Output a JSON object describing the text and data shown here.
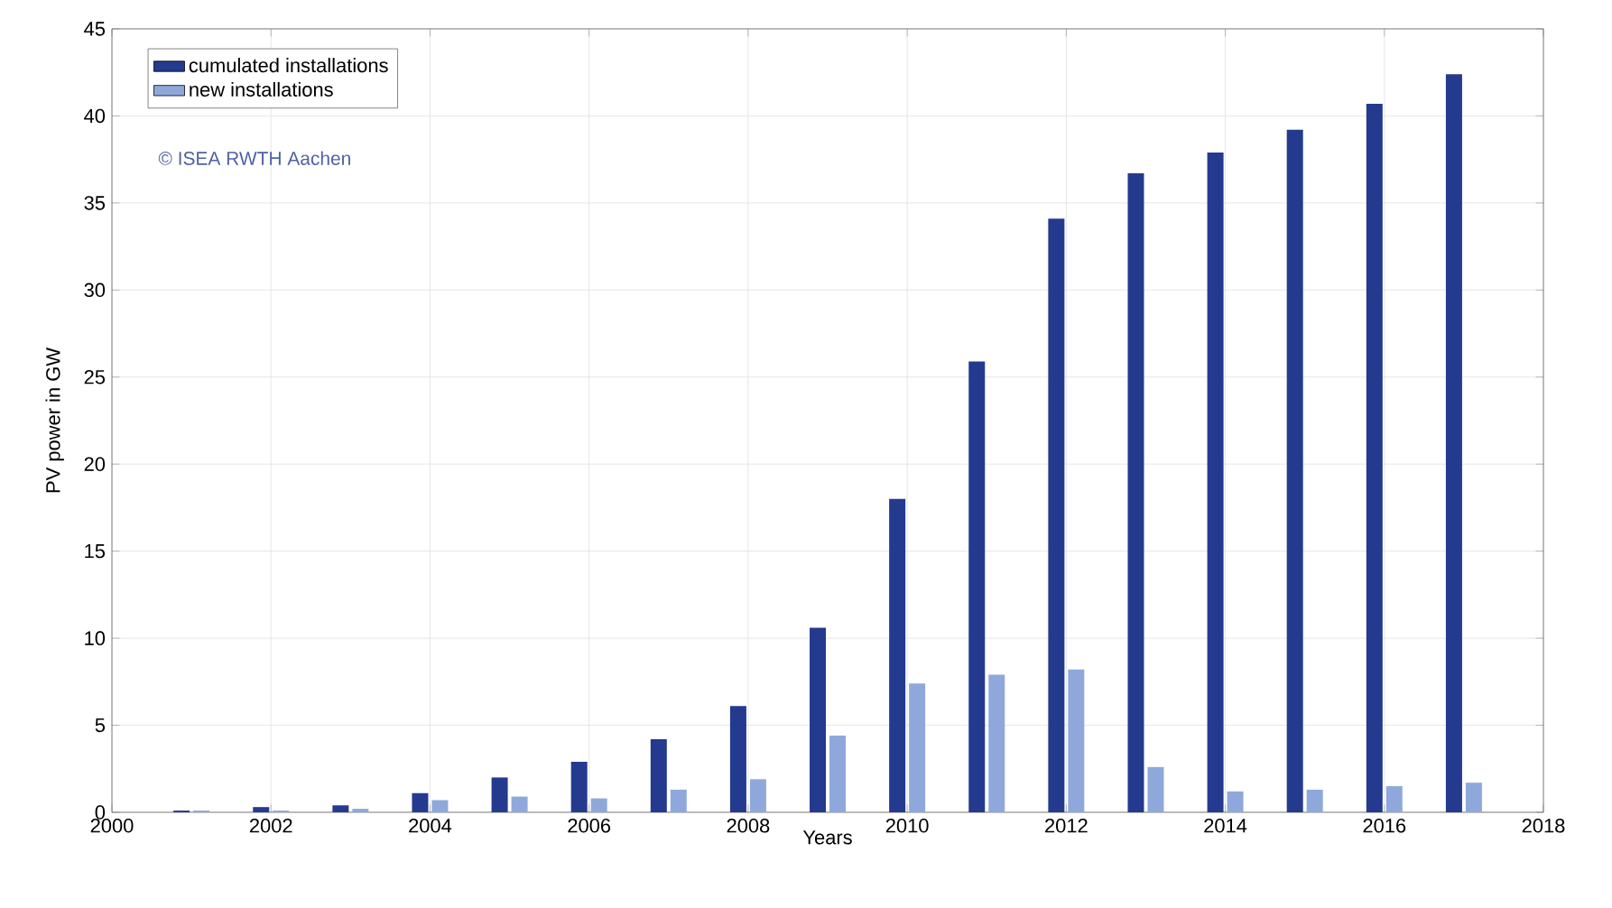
{
  "chart_data": {
    "type": "bar",
    "xlabel": "Years",
    "ylabel": "PV power in GW",
    "x": [
      2001,
      2002,
      2003,
      2004,
      2005,
      2006,
      2007,
      2008,
      2009,
      2010,
      2011,
      2012,
      2013,
      2014,
      2015,
      2016,
      2017
    ],
    "series": [
      {
        "name": "cumulated installations",
        "color": "#233a8f",
        "values": [
          0.1,
          0.3,
          0.4,
          1.1,
          2.0,
          2.9,
          4.2,
          6.1,
          10.6,
          18.0,
          25.9,
          34.1,
          36.7,
          37.9,
          39.2,
          40.7,
          42.4
        ]
      },
      {
        "name": "new installations",
        "color": "#8fa8dc",
        "values": [
          0.1,
          0.1,
          0.2,
          0.7,
          0.9,
          0.8,
          1.3,
          1.9,
          4.4,
          7.4,
          7.9,
          8.2,
          2.6,
          1.2,
          1.3,
          1.5,
          1.7
        ]
      }
    ],
    "xlim": [
      2000,
      2018
    ],
    "ylim": [
      0,
      45
    ],
    "xticks": [
      2000,
      2002,
      2004,
      2006,
      2008,
      2010,
      2012,
      2014,
      2016,
      2018
    ],
    "yticks": [
      0,
      5,
      10,
      15,
      20,
      25,
      30,
      35,
      40,
      45
    ],
    "grid": true,
    "legend": "top left",
    "annotations": [
      "© ISEA RWTH Aachen"
    ]
  }
}
